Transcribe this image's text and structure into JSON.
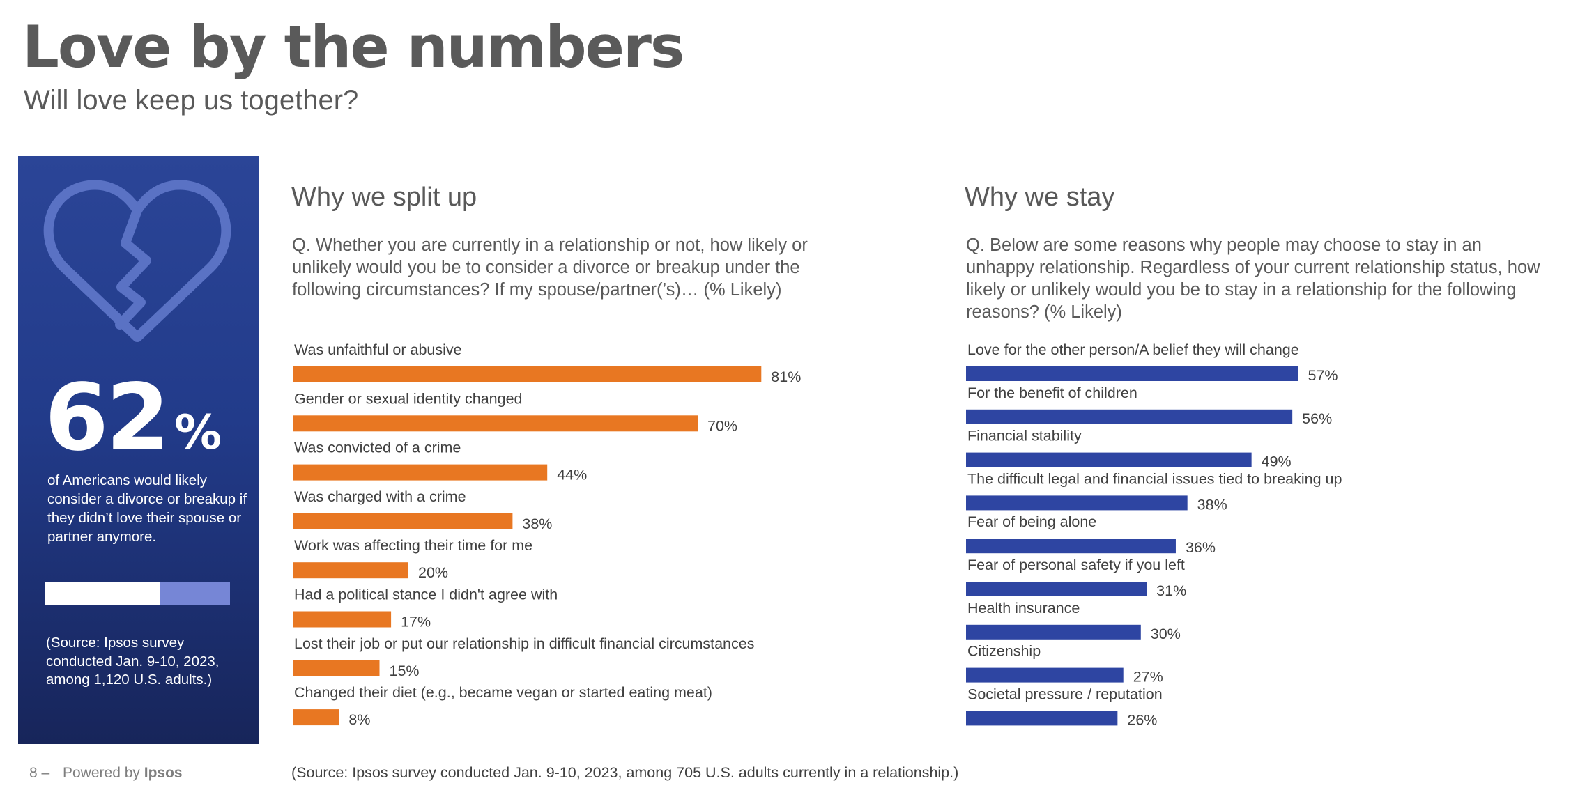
{
  "title": "Love by the numbers",
  "subtitle": "Will love keep us together?",
  "panel": {
    "icon": "broken-heart-icon",
    "stat_number": "62",
    "stat_unit": "%",
    "stat_value": 0.62,
    "stat_text": "of Americans would likely consider a divorce or breakup if they didn’t love their spouse or partner anymore.",
    "source": "(Source: Ipsos survey conducted Jan. 9-10, 2023, among 1,120 U.S. adults.)"
  },
  "split": {
    "title": "Why we split up",
    "question": "Q. Whether you are currently in a relationship or not, how likely or unlikely would you be to consider a divorce or breakup under the following circumstances? If my spouse/partner(’s)…  (% Likely)"
  },
  "stay": {
    "title": "Why we stay",
    "question": "Q. Below are some reasons why people may choose to stay in an unhappy relationship. Regardless of your current relationship status, how likely or unlikely would you be to stay in a relationship for the following reasons? (% Likely)"
  },
  "footer": {
    "page": "8 –",
    "powered_by": "Powered by",
    "brand": "Ipsos",
    "source": "(Source: Ipsos survey conducted Jan. 9-10, 2023, among 705 U.S. adults currently in a relationship.)"
  },
  "colors": {
    "split_bar": "#E87722",
    "stay_bar": "#2E45A2",
    "panel": "#223B8A"
  },
  "chart_data": [
    {
      "type": "bar",
      "orientation": "horizontal",
      "title": "Why we split up",
      "categories": [
        "Was unfaithful or abusive",
        "Gender or sexual identity changed",
        "Was convicted of a crime",
        "Was charged with a crime",
        "Work was affecting their time for me",
        "Had a political stance I didn't agree with",
        "Lost their job or put our relationship in difficult financial circumstances",
        "Changed their diet (e.g., became vegan or started eating meat)"
      ],
      "values": [
        81,
        70,
        44,
        38,
        20,
        17,
        15,
        8
      ],
      "value_labels": [
        "81%",
        "70%",
        "44%",
        "38%",
        "20%",
        "17%",
        "15%",
        "8%"
      ],
      "unit": "%",
      "xlim": [
        0,
        100
      ],
      "grid": false
    },
    {
      "type": "bar",
      "orientation": "horizontal",
      "title": "Why we stay",
      "categories": [
        "Love for the other person/A belief they will change",
        "For the benefit of children",
        "Financial stability",
        "The difficult legal and financial issues tied to breaking up",
        "Fear of being alone",
        "Fear of personal safety if you left",
        "Health insurance",
        "Citizenship",
        "Societal pressure / reputation"
      ],
      "values": [
        57,
        56,
        49,
        38,
        36,
        31,
        30,
        27,
        26
      ],
      "value_labels": [
        "57%",
        "56%",
        "49%",
        "38%",
        "36%",
        "31%",
        "30%",
        "27%",
        "26%"
      ],
      "unit": "%",
      "xlim": [
        0,
        100
      ],
      "grid": false
    }
  ]
}
